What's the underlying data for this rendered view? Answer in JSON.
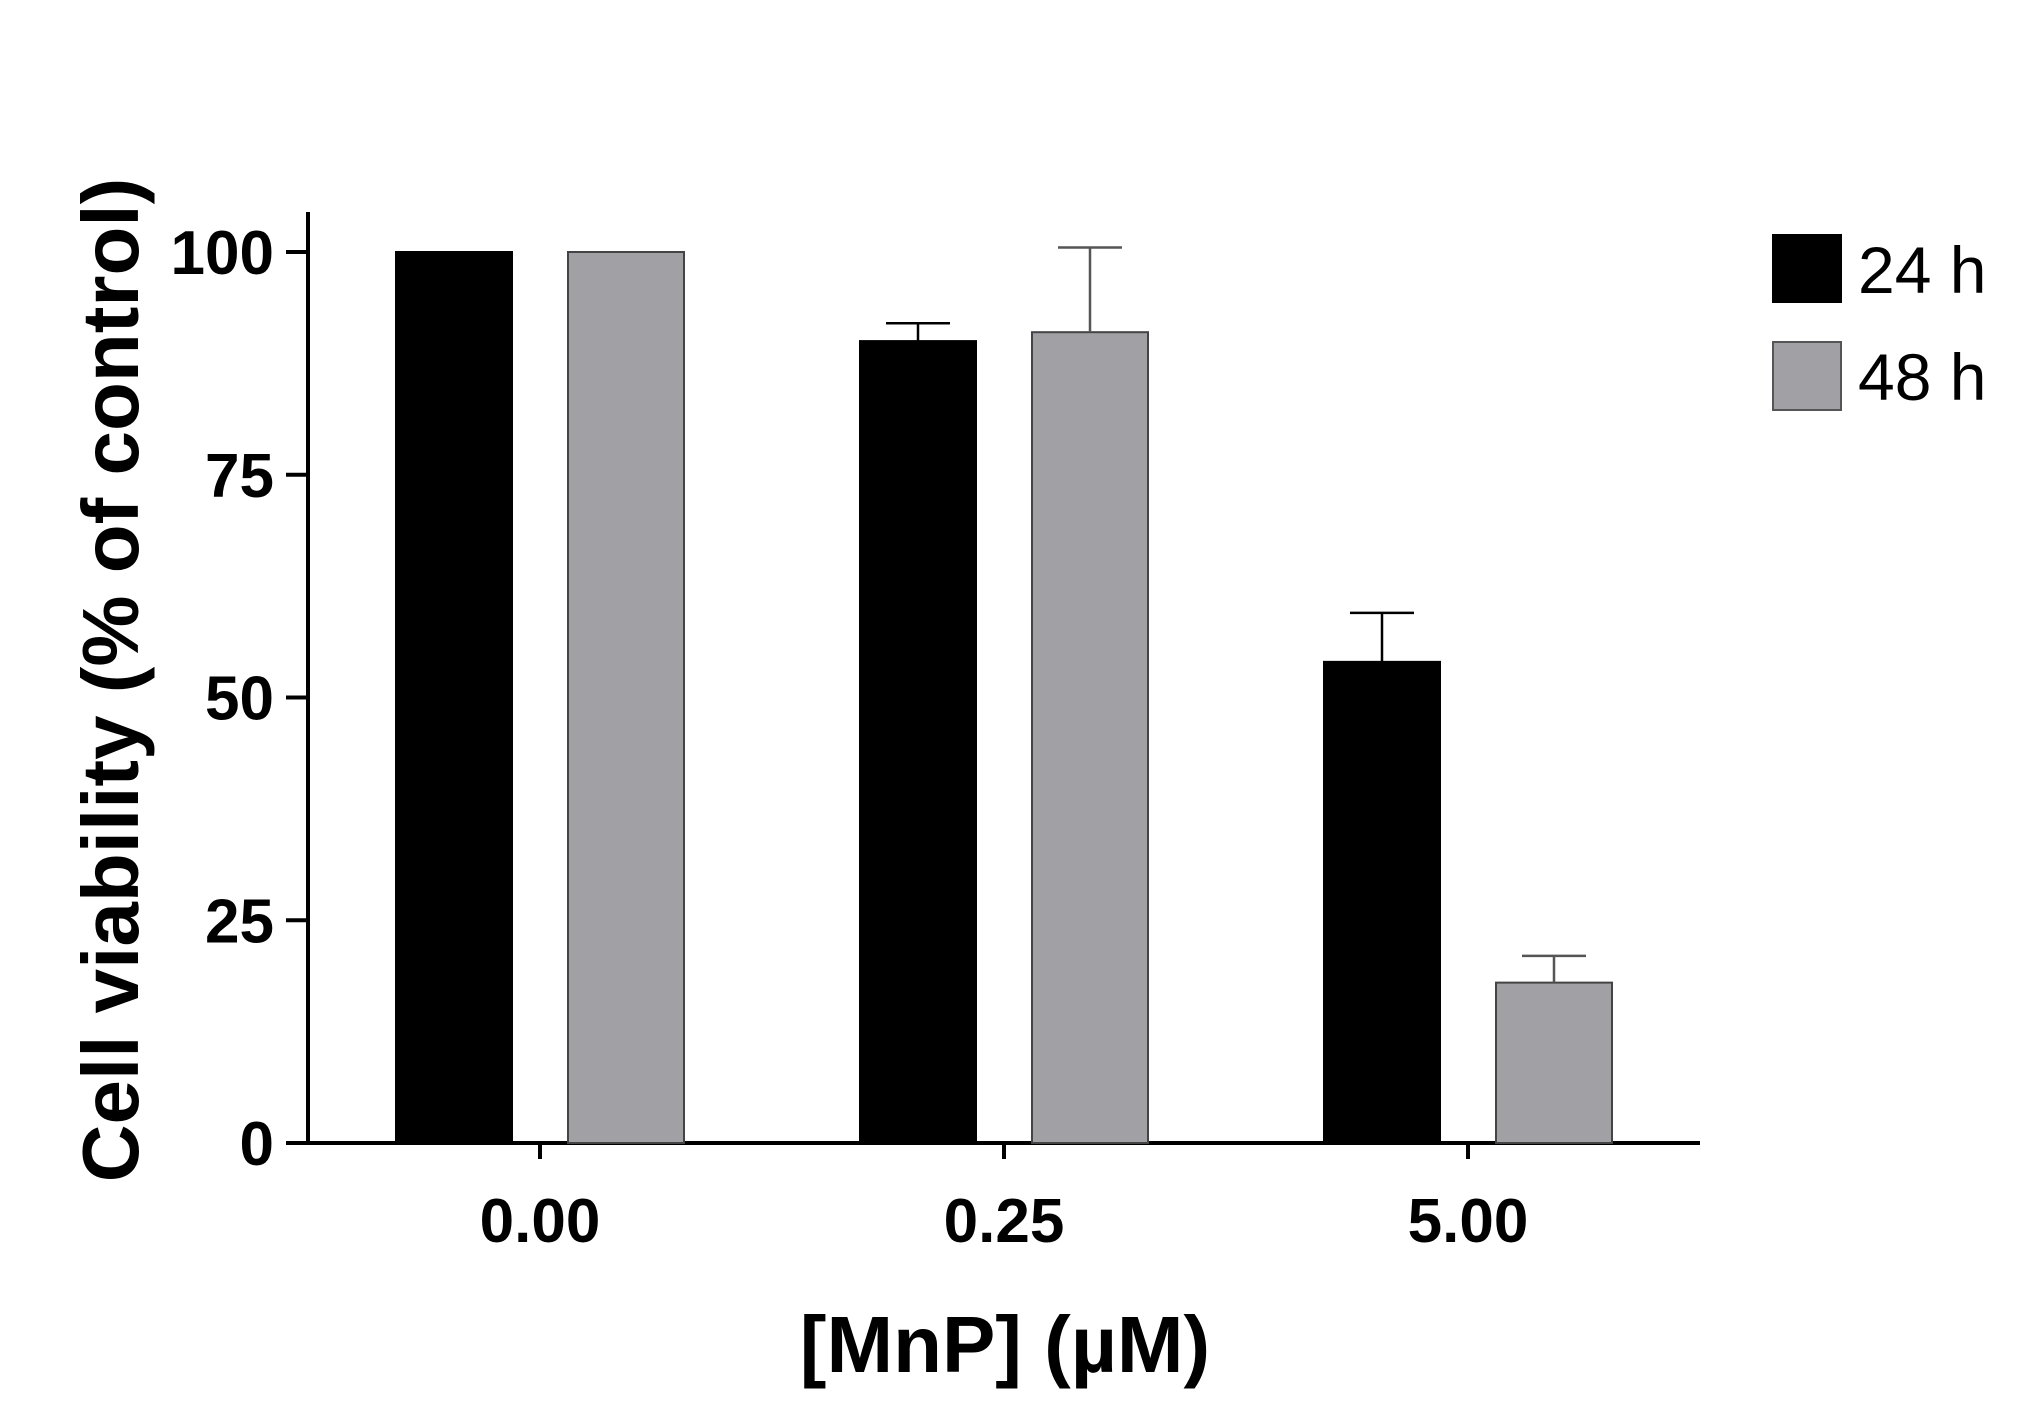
{
  "chart_data": {
    "type": "bar",
    "categories": [
      "0.00",
      "0.25",
      "5.00"
    ],
    "series": [
      {
        "name": "24 h",
        "color": "#000000",
        "values": [
          100,
          90,
          54
        ],
        "errors": [
          0,
          2,
          5.5
        ]
      },
      {
        "name": "48 h",
        "color": "#a1a0a5",
        "values": [
          100,
          91,
          18
        ],
        "errors": [
          0,
          9.5,
          3
        ]
      }
    ],
    "xlabel": "[MnP] (µM)",
    "ylabel": "Cell viability (% of control)",
    "ylim": [
      0,
      100
    ],
    "yticks": [
      "0",
      "25",
      "50",
      "75",
      "100"
    ],
    "legend_position": "top-right",
    "grid": false
  }
}
